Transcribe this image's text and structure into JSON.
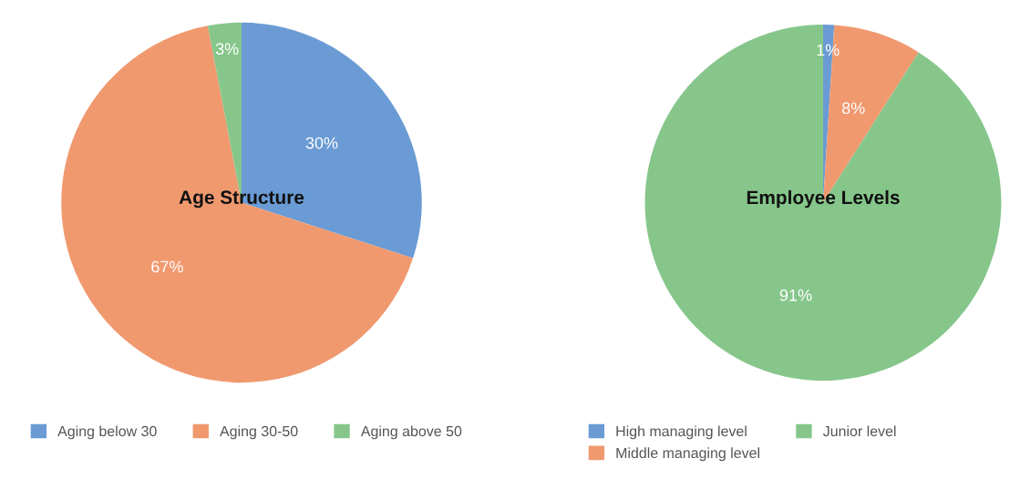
{
  "chart_data": [
    {
      "type": "pie",
      "title": "Age Structure",
      "categories": [
        "Aging below 30",
        "Aging 30-50",
        "Aging above 50"
      ],
      "values": [
        30,
        67,
        3
      ],
      "colors": [
        "#6a9bd4",
        "#f0996f",
        "#86c68a"
      ],
      "value_labels": [
        "30%",
        "67%",
        "3%"
      ],
      "legend": "bottom"
    },
    {
      "type": "pie",
      "title": "Employee Levels",
      "categories": [
        "High managing level",
        "Middle managing level",
        "Junior level"
      ],
      "values": [
        1,
        8,
        91
      ],
      "colors": [
        "#6a9bd4",
        "#f0996f",
        "#86c68a"
      ],
      "value_labels": [
        "1%",
        "8%",
        "91%"
      ],
      "legend": "bottom"
    }
  ]
}
